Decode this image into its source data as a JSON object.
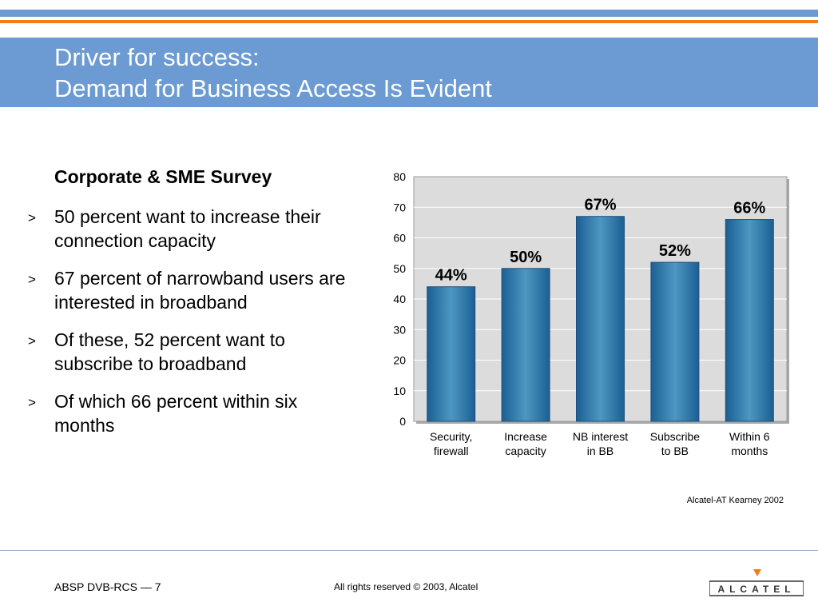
{
  "header": {
    "title_line1": "Driver for success:",
    "title_line2": "Demand for Business Access Is Evident"
  },
  "survey": {
    "title": "Corporate & SME Survey",
    "bullet_marker": ">",
    "bullets": [
      "50 percent want to increase their connection capacity",
      "67 percent of narrowband users are interested in broadband",
      "Of these, 52 percent want to subscribe to broadband",
      "Of which 66 percent within six months"
    ]
  },
  "chart_data": {
    "type": "bar",
    "categories": [
      [
        "Security,",
        "firewall"
      ],
      [
        "Increase",
        "capacity"
      ],
      [
        "NB interest",
        "in BB"
      ],
      [
        "Subscribe",
        "to BB"
      ],
      [
        "Within 6",
        "months"
      ]
    ],
    "values": [
      44,
      50,
      67,
      52,
      66
    ],
    "data_labels": [
      "44%",
      "50%",
      "67%",
      "52%",
      "66%"
    ],
    "ylim": [
      0,
      80
    ],
    "yticks": [
      0,
      10,
      20,
      30,
      40,
      50,
      60,
      70,
      80
    ],
    "grid": true,
    "colors": {
      "plot_bg": "#dcdcdc",
      "bar_edge": "#1e4f80",
      "bar_mid": "#4e97c2",
      "bar_dark": "#1b5f93"
    }
  },
  "source_note": "Alcatel-AT Kearney 2002",
  "footer": {
    "left": "ABSP DVB-RCS — 7",
    "center": "All rights reserved © 2003, Alcatel",
    "logo_text": "ALCATEL"
  },
  "colors": {
    "header_band": "#6b9bd2",
    "accent_stripe": "#f07d1a"
  }
}
